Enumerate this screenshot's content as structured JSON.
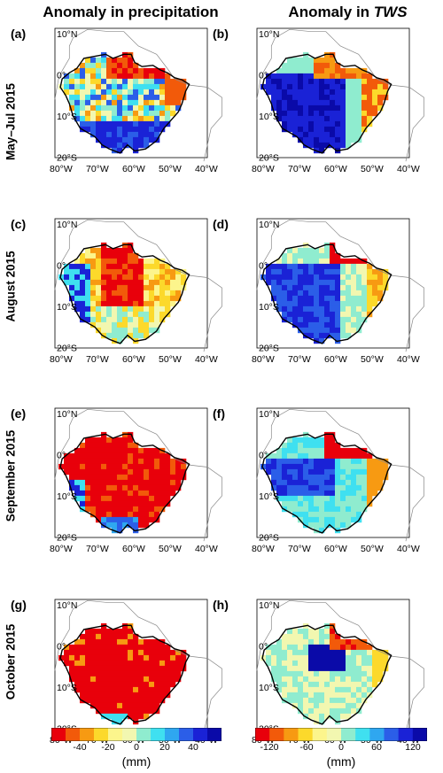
{
  "titles": {
    "left": "Anomaly in precipitation",
    "right_prefix": "Anomaly in ",
    "right_italic": "TWS"
  },
  "rows": [
    {
      "label": "May–Jul 2015",
      "left_panel": "(a)",
      "right_panel": "(b)"
    },
    {
      "label": "August 2015",
      "left_panel": "(c)",
      "right_panel": "(d)"
    },
    {
      "label": "September 2015",
      "left_panel": "(e)",
      "right_panel": "(f)"
    },
    {
      "label": "October 2015",
      "left_panel": "(g)",
      "right_panel": "(h)"
    }
  ],
  "axes": {
    "lon_ticks": [
      "80",
      "70",
      "60",
      "50",
      "40"
    ],
    "lon_suffix": "W",
    "lat_ticks": [
      {
        "v": "10",
        "h": "N"
      },
      {
        "v": "0",
        "h": ""
      },
      {
        "v": "10",
        "h": "S"
      },
      {
        "v": "20",
        "h": "S"
      }
    ]
  },
  "colorbars": {
    "left": {
      "ticks": [
        "-40",
        "-20",
        "0",
        "20",
        "40"
      ],
      "unit": "(mm)"
    },
    "right": {
      "ticks": [
        "-120",
        "-60",
        "0",
        "60",
        "120"
      ],
      "unit": "(mm)"
    }
  },
  "colors": [
    "#e8000b",
    "#f25a0a",
    "#f79a12",
    "#fcd92b",
    "#fcf58c",
    "#f2f7b0",
    "#8feccf",
    "#3fe0f0",
    "#2fa7f0",
    "#2b5ee8",
    "#1a22d6",
    "#0a0aa8"
  ]
}
